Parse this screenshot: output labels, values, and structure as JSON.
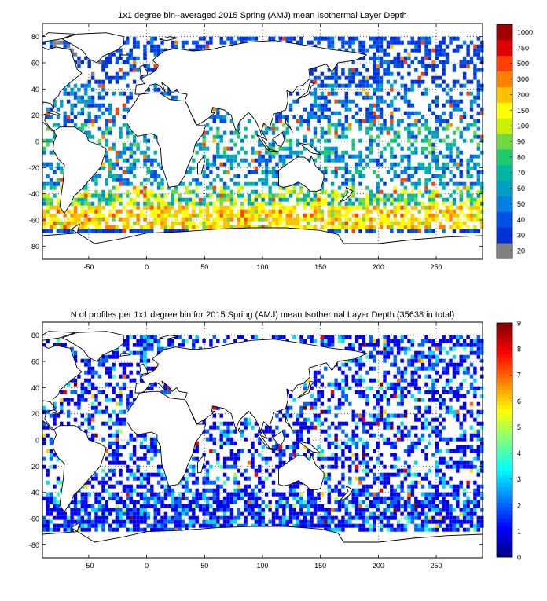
{
  "panels": [
    {
      "title": "1x1 degree bin–averaged 2015 Spring (AMJ) mean Isothermal Layer Depth",
      "x_ticks": [
        "-50",
        "0",
        "50",
        "100",
        "150",
        "200",
        "250"
      ],
      "y_ticks": [
        "80",
        "60",
        "40",
        "20",
        "0",
        "-20",
        "-40",
        "-60",
        "-80"
      ],
      "colorbar_labels": [
        "20",
        "30",
        "40",
        "50",
        "60",
        "70",
        "80",
        "90",
        "100",
        "150",
        "200",
        "300",
        "500",
        "750",
        "1000"
      ],
      "colorbar_colors": [
        "#808080",
        "#0030d8",
        "#0050e8",
        "#0080e0",
        "#00a0c0",
        "#00b8a0",
        "#20c870",
        "#70d840",
        "#c8f000",
        "#ffff00",
        "#ffc000",
        "#ff8000",
        "#ff4000",
        "#e00000",
        "#a00000"
      ]
    },
    {
      "title": "N of profiles per 1x1 degree bin for 2015 Spring (AMJ) mean Isothermal Layer Depth  (35638 in total)",
      "x_ticks": [
        "-50",
        "0",
        "50",
        "100",
        "150",
        "200",
        "250"
      ],
      "y_ticks": [
        "80",
        "60",
        "40",
        "20",
        "0",
        "-20",
        "-40",
        "-60",
        "-80"
      ],
      "colorbar_labels": [
        "0",
        "1",
        "2",
        "3",
        "4",
        "5",
        "6",
        "7",
        "8",
        "9"
      ]
    }
  ],
  "chart_data": [
    {
      "type": "heatmap",
      "title": "1x1 degree bin–averaged 2015 Spring (AMJ) mean Isothermal Layer Depth",
      "xlim": [
        -90,
        290
      ],
      "ylim": [
        -90,
        90
      ],
      "colorbar_levels": [
        20,
        30,
        40,
        50,
        60,
        70,
        80,
        90,
        100,
        150,
        200,
        300,
        500,
        750,
        1000
      ],
      "bands": [
        {
          "lat": [
            -66,
            -48
          ],
          "value": 150
        },
        {
          "lat": [
            -48,
            -35
          ],
          "value": 80
        },
        {
          "lat": [
            -35,
            -10
          ],
          "value": 50
        },
        {
          "lat": [
            -10,
            15
          ],
          "value": 60
        },
        {
          "lat": [
            15,
            45
          ],
          "value": 40
        },
        {
          "lat": [
            45,
            70
          ],
          "value": 30
        }
      ]
    },
    {
      "type": "heatmap",
      "title": "N of profiles per 1x1 degree bin for 2015 Spring (AMJ) mean Isothermal Layer Depth  (35638 in total)",
      "xlim": [
        -90,
        290
      ],
      "ylim": [
        -90,
        90
      ],
      "colorbar_range": [
        0,
        9
      ],
      "total_profiles": 35638,
      "typical_count": 1
    }
  ]
}
